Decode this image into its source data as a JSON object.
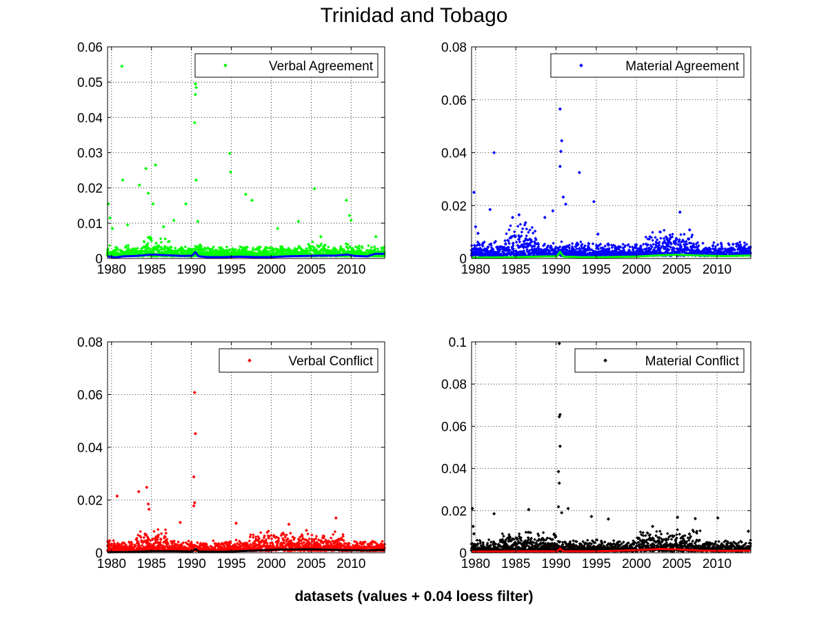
{
  "figure": {
    "title": "Trinidad and Tobago",
    "xlabel": "datasets (values + 0.04 loess filter)"
  },
  "chart_data": [
    {
      "type": "scatter",
      "legend": "Verbal Agreement",
      "legend_placement": "top-right",
      "point_color": "#00ff00",
      "filter_color": "#0000ff",
      "xlim": [
        1979.5,
        2014.2
      ],
      "ylim": [
        0,
        0.06
      ],
      "xticks": [
        1980,
        1985,
        1990,
        1995,
        2000,
        2005,
        2010
      ],
      "yticks": [
        0,
        0.01,
        0.02,
        0.03,
        0.04,
        0.05,
        0.06
      ],
      "grid": true,
      "peaks": [
        [
          1979.6,
          0.0155
        ],
        [
          1979.8,
          0.0115
        ],
        [
          1980.1,
          0.0085
        ],
        [
          1981.3,
          0.0545
        ],
        [
          1981.4,
          0.0222
        ],
        [
          1982.0,
          0.0095
        ],
        [
          1983.5,
          0.0208
        ],
        [
          1984.3,
          0.0255
        ],
        [
          1984.6,
          0.0185
        ],
        [
          1985.5,
          0.0265
        ],
        [
          1985.2,
          0.0155
        ],
        [
          1986.5,
          0.009
        ],
        [
          1987.8,
          0.0108
        ],
        [
          1989.3,
          0.0155
        ],
        [
          1990.5,
          0.0495
        ],
        [
          1990.6,
          0.0485
        ],
        [
          1990.5,
          0.0465
        ],
        [
          1990.4,
          0.0385
        ],
        [
          1990.6,
          0.0222
        ],
        [
          1990.8,
          0.0105
        ],
        [
          1994.8,
          0.0298
        ],
        [
          1994.9,
          0.0245
        ],
        [
          1996.8,
          0.0182
        ],
        [
          1997.6,
          0.0165
        ],
        [
          2000.8,
          0.0085
        ],
        [
          2003.4,
          0.0105
        ],
        [
          2005.4,
          0.0198
        ],
        [
          2006.2,
          0.0062
        ],
        [
          2009.4,
          0.0165
        ],
        [
          2009.8,
          0.0122
        ],
        [
          2010.0,
          0.0108
        ],
        [
          2013.1,
          0.0062
        ]
      ],
      "baseline": 0.0022,
      "baseline_spread": 0.0022,
      "bursts": [
        [
          1984,
          1987.5,
          0.0045
        ],
        [
          1990,
          1991.5,
          0.003
        ],
        [
          2004,
          2007,
          0.0032
        ],
        [
          2009,
          2011,
          0.003
        ]
      ],
      "filter": [
        [
          1979.5,
          0.0006
        ],
        [
          1980.5,
          0.0003
        ],
        [
          1981.5,
          0.0006
        ],
        [
          1983,
          0.0007
        ],
        [
          1985,
          0.0011
        ],
        [
          1987,
          0.0009
        ],
        [
          1989,
          0.0007
        ],
        [
          1990.1,
          0.0008
        ],
        [
          1990.5,
          0.0018
        ],
        [
          1990.9,
          0.0006
        ],
        [
          1992,
          0.0004
        ],
        [
          1994,
          0.0004
        ],
        [
          1996,
          0.0005
        ],
        [
          1998,
          0.0004
        ],
        [
          2000,
          0.0004
        ],
        [
          2002,
          0.0006
        ],
        [
          2004,
          0.0007
        ],
        [
          2006,
          0.0008
        ],
        [
          2008,
          0.0008
        ],
        [
          2009.5,
          0.0011
        ],
        [
          2010.5,
          0.0007
        ],
        [
          2012,
          0.0006
        ],
        [
          2013,
          0.0013
        ],
        [
          2014.2,
          0.0013
        ]
      ]
    },
    {
      "type": "scatter",
      "legend": "Material Agreement",
      "legend_placement": "top-right",
      "point_color": "#0000ff",
      "filter_color": "#00ff00",
      "xlim": [
        1979.5,
        2014.2
      ],
      "ylim": [
        0,
        0.08
      ],
      "xticks": [
        1980,
        1985,
        1990,
        1995,
        2000,
        2005,
        2010
      ],
      "yticks": [
        0,
        0.02,
        0.04,
        0.06,
        0.08
      ],
      "grid": true,
      "peaks": [
        [
          1979.8,
          0.025
        ],
        [
          1980.0,
          0.012
        ],
        [
          1980.3,
          0.0095
        ],
        [
          1981.8,
          0.0185
        ],
        [
          1982.3,
          0.04
        ],
        [
          1984.6,
          0.0155
        ],
        [
          1985.4,
          0.0165
        ],
        [
          1986.2,
          0.0135
        ],
        [
          1988.6,
          0.0155
        ],
        [
          1989.6,
          0.018
        ],
        [
          1990.5,
          0.0565
        ],
        [
          1990.7,
          0.0445
        ],
        [
          1990.6,
          0.0405
        ],
        [
          1990.5,
          0.0348
        ],
        [
          1990.9,
          0.0232
        ],
        [
          1991.2,
          0.0205
        ],
        [
          1992.9,
          0.0325
        ],
        [
          1994.7,
          0.0215
        ],
        [
          1995.2,
          0.0092
        ],
        [
          2005.4,
          0.0175
        ],
        [
          2006.6,
          0.0108
        ]
      ],
      "baseline": 0.0035,
      "baseline_spread": 0.004,
      "bursts": [
        [
          1983.5,
          1987.5,
          0.009
        ],
        [
          2001,
          2007,
          0.0075
        ],
        [
          2011,
          2014,
          0.003
        ]
      ],
      "filter": [
        [
          1979.5,
          0.0003
        ],
        [
          1982,
          0.0004
        ],
        [
          1985,
          0.0005
        ],
        [
          1988,
          0.0007
        ],
        [
          1990.1,
          0.0008
        ],
        [
          1990.5,
          0.0025
        ],
        [
          1990.9,
          0.0007
        ],
        [
          1993,
          0.0005
        ],
        [
          1996,
          0.0005
        ],
        [
          2000,
          0.0007
        ],
        [
          2003,
          0.0012
        ],
        [
          2005,
          0.0014
        ],
        [
          2008,
          0.0011
        ],
        [
          2011,
          0.0009
        ],
        [
          2014.2,
          0.0011
        ]
      ]
    },
    {
      "type": "scatter",
      "legend": "Verbal Conflict",
      "legend_placement": "top-right",
      "point_color": "#ff0000",
      "filter_color": "#000000",
      "xlim": [
        1979.5,
        2014.2
      ],
      "ylim": [
        0,
        0.08
      ],
      "xticks": [
        1980,
        1985,
        1990,
        1995,
        2000,
        2005,
        2010
      ],
      "yticks": [
        0,
        0.02,
        0.04,
        0.06,
        0.08
      ],
      "grid": true,
      "peaks": [
        [
          1979.6,
          0.004
        ],
        [
          1980.7,
          0.0215
        ],
        [
          1983.4,
          0.0232
        ],
        [
          1984.4,
          0.0248
        ],
        [
          1984.6,
          0.0185
        ],
        [
          1984.7,
          0.0165
        ],
        [
          1988.6,
          0.0115
        ],
        [
          1990.4,
          0.0608
        ],
        [
          1990.5,
          0.0452
        ],
        [
          1990.3,
          0.0288
        ],
        [
          1990.4,
          0.019
        ],
        [
          1990.3,
          0.0178
        ],
        [
          1995.6,
          0.0112
        ],
        [
          2002.2,
          0.0108
        ],
        [
          2004.4,
          0.0085
        ],
        [
          2008.1,
          0.0132
        ]
      ],
      "baseline": 0.0025,
      "baseline_spread": 0.003,
      "bursts": [
        [
          1983,
          1987,
          0.006
        ],
        [
          1997,
          2009,
          0.0055
        ],
        [
          2011,
          2014,
          0.0025
        ]
      ],
      "filter": [
        [
          1979.5,
          0.0002
        ],
        [
          1982,
          0.0003
        ],
        [
          1985,
          0.0006
        ],
        [
          1988,
          0.0006
        ],
        [
          1990.1,
          0.0005
        ],
        [
          1990.5,
          0.0014
        ],
        [
          1990.9,
          0.0005
        ],
        [
          1994,
          0.0004
        ],
        [
          1998,
          0.0008
        ],
        [
          2001,
          0.0012
        ],
        [
          2005,
          0.0013
        ],
        [
          2009,
          0.001
        ],
        [
          2012,
          0.0009
        ],
        [
          2014.2,
          0.0011
        ]
      ]
    },
    {
      "type": "scatter",
      "legend": "Material Conflict",
      "legend_placement": "top-right",
      "point_color": "#000000",
      "filter_color": "#ff0000",
      "xlim": [
        1979.5,
        2014.2
      ],
      "ylim": [
        0,
        0.1
      ],
      "xticks": [
        1980,
        1985,
        1990,
        1995,
        2000,
        2005,
        2010
      ],
      "yticks": [
        0,
        0.02,
        0.04,
        0.06,
        0.08,
        0.1
      ],
      "grid": true,
      "peaks": [
        [
          1979.6,
          0.021
        ],
        [
          1979.7,
          0.0125
        ],
        [
          1979.8,
          0.009
        ],
        [
          1982.3,
          0.0185
        ],
        [
          1986.6,
          0.0205
        ],
        [
          1990.4,
          0.0992
        ],
        [
          1990.5,
          0.0655
        ],
        [
          1990.4,
          0.0645
        ],
        [
          1990.5,
          0.0505
        ],
        [
          1990.3,
          0.0385
        ],
        [
          1990.4,
          0.033
        ],
        [
          1990.3,
          0.0218
        ],
        [
          1990.7,
          0.019
        ],
        [
          1991.5,
          0.021
        ],
        [
          1994.4,
          0.0172
        ],
        [
          1996.5,
          0.016
        ],
        [
          2002.0,
          0.0125
        ],
        [
          2005.1,
          0.0168
        ],
        [
          2007.3,
          0.0162
        ],
        [
          2010.1,
          0.0165
        ],
        [
          2013.9,
          0.0102
        ]
      ],
      "baseline": 0.0025,
      "baseline_spread": 0.004,
      "bursts": [
        [
          1983,
          1990,
          0.007
        ],
        [
          2000,
          2008,
          0.0075
        ],
        [
          2011,
          2014,
          0.0035
        ]
      ],
      "filter": [
        [
          1979.5,
          0.0006
        ],
        [
          1985,
          0.0007
        ],
        [
          1990.1,
          0.0007
        ],
        [
          1990.5,
          0.002
        ],
        [
          1990.9,
          0.0007
        ],
        [
          1995,
          0.0007
        ],
        [
          2000,
          0.0012
        ],
        [
          2003,
          0.0018
        ],
        [
          2005,
          0.0016
        ],
        [
          2008,
          0.001
        ],
        [
          2011,
          0.0009
        ],
        [
          2014.2,
          0.001
        ]
      ]
    }
  ]
}
